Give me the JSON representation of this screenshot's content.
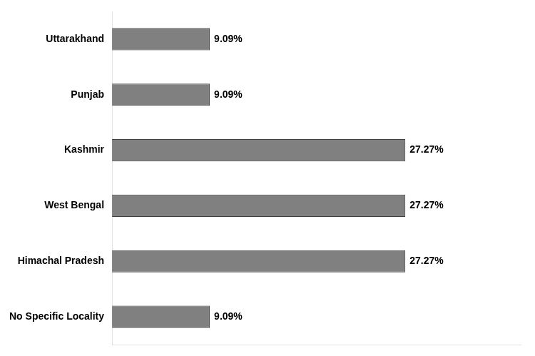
{
  "chart_data": {
    "type": "bar",
    "orientation": "horizontal",
    "categories": [
      "No Specific Locality",
      "Himachal Pradesh",
      "West Bengal",
      "Kashmir",
      "Punjab",
      "Uttarakhand"
    ],
    "values": [
      9.09,
      27.27,
      27.27,
      27.27,
      9.09,
      9.09
    ],
    "value_labels": [
      "9.09%",
      "27.27%",
      "27.27%",
      "27.27%",
      "9.09%",
      "9.09%"
    ],
    "color": "#808080",
    "xlim": [
      0,
      38
    ],
    "tick_labels": "y",
    "grid": false
  }
}
